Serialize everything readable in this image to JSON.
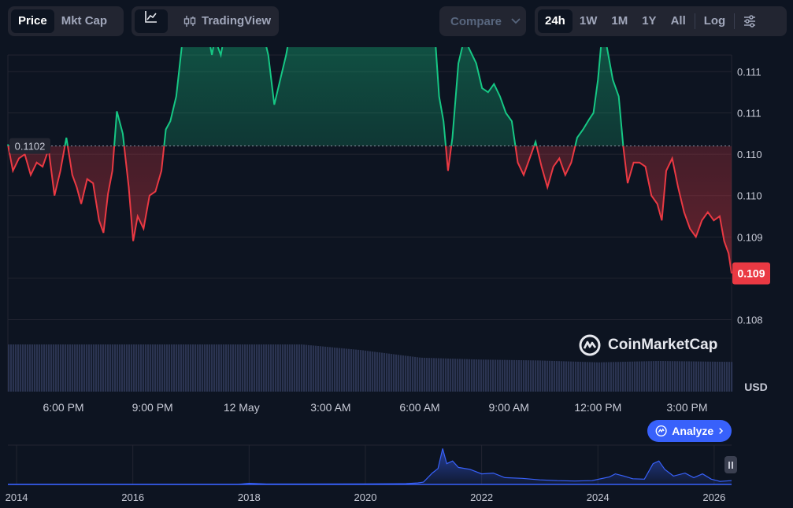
{
  "toolbar": {
    "type_buttons": [
      {
        "label": "Price",
        "active": true
      },
      {
        "label": "Mkt Cap",
        "active": false
      }
    ],
    "line_icon": "line-chart-icon",
    "tradingview_label": "TradingView",
    "tradingview_icon": "candlestick-icon",
    "compare_label": "Compare",
    "ranges": [
      {
        "label": "24h",
        "active": true
      },
      {
        "label": "1W",
        "active": false
      },
      {
        "label": "1M",
        "active": false
      },
      {
        "label": "1Y",
        "active": false
      },
      {
        "label": "All",
        "active": false
      }
    ],
    "log_label": "Log",
    "settings_icon": "sliders-icon"
  },
  "watermark": "CoinMarketCap",
  "analyze_label": "Analyze",
  "colors": {
    "up": "#16c784",
    "down": "#ea3943",
    "accent": "#3861fb",
    "volume": "#2b3451"
  },
  "chart_data": {
    "type": "line",
    "title": "",
    "xlabel": "",
    "ylabel": "",
    "currency_label": "USD",
    "baseline_value": 0.1102,
    "baseline_label": "0.1102",
    "current_value": 0.10866,
    "current_label": "0.109",
    "ylim": [
      0.1078,
      0.1113
    ],
    "y_ticks": [
      {
        "value": 0.1111,
        "label": "0.111"
      },
      {
        "value": 0.1106,
        "label": "0.111"
      },
      {
        "value": 0.1101,
        "label": "0.110"
      },
      {
        "value": 0.1096,
        "label": "0.110"
      },
      {
        "value": 0.1091,
        "label": "0.109"
      },
      {
        "value": 0.1086,
        "label": "0.109"
      },
      {
        "value": 0.1081,
        "label": "0.108"
      }
    ],
    "x_range": [
      16.13,
      40.5
    ],
    "x_ticks": [
      {
        "value": 18,
        "label": "6:00 PM"
      },
      {
        "value": 21,
        "label": "9:00 PM"
      },
      {
        "value": 24,
        "label": "12 May"
      },
      {
        "value": 27,
        "label": "3:00 AM"
      },
      {
        "value": 30,
        "label": "6:00 AM"
      },
      {
        "value": 33,
        "label": "9:00 AM"
      },
      {
        "value": 36,
        "label": "12:00 PM"
      },
      {
        "value": 39,
        "label": "3:00 PM"
      }
    ],
    "price_points": [
      [
        16.13,
        0.11022
      ],
      [
        16.3,
        0.1099
      ],
      [
        16.5,
        0.11005
      ],
      [
        16.7,
        0.1101
      ],
      [
        16.9,
        0.10985
      ],
      [
        17.1,
        0.11
      ],
      [
        17.3,
        0.10995
      ],
      [
        17.5,
        0.11016
      ],
      [
        17.7,
        0.1096
      ],
      [
        17.9,
        0.1099
      ],
      [
        18.1,
        0.1103
      ],
      [
        18.3,
        0.10985
      ],
      [
        18.45,
        0.1097
      ],
      [
        18.6,
        0.1095
      ],
      [
        18.8,
        0.1098
      ],
      [
        19.0,
        0.10975
      ],
      [
        19.2,
        0.1093
      ],
      [
        19.35,
        0.10915
      ],
      [
        19.5,
        0.10962
      ],
      [
        19.65,
        0.1099
      ],
      [
        19.8,
        0.11062
      ],
      [
        20.0,
        0.11035
      ],
      [
        20.2,
        0.1097
      ],
      [
        20.35,
        0.10905
      ],
      [
        20.5,
        0.10935
      ],
      [
        20.7,
        0.1092
      ],
      [
        20.9,
        0.1096
      ],
      [
        21.1,
        0.10965
      ],
      [
        21.3,
        0.1099
      ],
      [
        21.45,
        0.1104
      ],
      [
        21.6,
        0.1105
      ],
      [
        21.8,
        0.1108
      ],
      [
        22.0,
        0.11145
      ],
      [
        22.1,
        0.11185
      ],
      [
        22.25,
        0.11165
      ],
      [
        22.4,
        0.1118
      ],
      [
        22.55,
        0.1117
      ],
      [
        22.7,
        0.1118
      ],
      [
        22.85,
        0.1116
      ],
      [
        23.0,
        0.1113
      ],
      [
        23.1,
        0.1115
      ],
      [
        23.3,
        0.1113
      ],
      [
        23.5,
        0.1117
      ],
      [
        23.7,
        0.1121
      ],
      [
        23.9,
        0.1123
      ],
      [
        24.1,
        0.112
      ],
      [
        24.25,
        0.1116
      ],
      [
        24.4,
        0.1115
      ],
      [
        24.55,
        0.1118
      ],
      [
        24.7,
        0.1116
      ],
      [
        24.9,
        0.1113
      ],
      [
        25.1,
        0.1107
      ],
      [
        25.3,
        0.111
      ],
      [
        25.5,
        0.1113
      ],
      [
        25.7,
        0.1117
      ],
      [
        25.85,
        0.1121
      ],
      [
        26.0,
        0.1124
      ],
      [
        26.2,
        0.11225
      ],
      [
        26.4,
        0.1124
      ],
      [
        26.6,
        0.11228
      ],
      [
        26.8,
        0.11232
      ],
      [
        27.0,
        0.1122
      ],
      [
        27.2,
        0.11228
      ],
      [
        27.4,
        0.1122
      ],
      [
        27.6,
        0.112
      ],
      [
        27.8,
        0.1118
      ],
      [
        28.0,
        0.1116
      ],
      [
        28.2,
        0.112
      ],
      [
        28.45,
        0.11225
      ],
      [
        28.7,
        0.112
      ],
      [
        28.9,
        0.1117
      ],
      [
        29.1,
        0.11185
      ],
      [
        29.3,
        0.112
      ],
      [
        29.5,
        0.1121
      ],
      [
        29.7,
        0.11215
      ],
      [
        29.9,
        0.1119
      ],
      [
        30.1,
        0.1122
      ],
      [
        30.3,
        0.11215
      ],
      [
        30.5,
        0.1116
      ],
      [
        30.65,
        0.1108
      ],
      [
        30.8,
        0.1105
      ],
      [
        30.95,
        0.1099
      ],
      [
        31.1,
        0.1103
      ],
      [
        31.3,
        0.1112
      ],
      [
        31.5,
        0.1115
      ],
      [
        31.7,
        0.11135
      ],
      [
        31.9,
        0.1112
      ],
      [
        32.1,
        0.1109
      ],
      [
        32.3,
        0.11085
      ],
      [
        32.5,
        0.11095
      ],
      [
        32.7,
        0.1108
      ],
      [
        32.9,
        0.1106
      ],
      [
        33.1,
        0.1105
      ],
      [
        33.3,
        0.11
      ],
      [
        33.5,
        0.10985
      ],
      [
        33.7,
        0.11005
      ],
      [
        33.9,
        0.11025
      ],
      [
        34.1,
        0.10995
      ],
      [
        34.3,
        0.1097
      ],
      [
        34.5,
        0.10995
      ],
      [
        34.7,
        0.11005
      ],
      [
        34.9,
        0.10985
      ],
      [
        35.1,
        0.11
      ],
      [
        35.3,
        0.1103
      ],
      [
        35.5,
        0.1104
      ],
      [
        35.7,
        0.11052
      ],
      [
        35.85,
        0.1106
      ],
      [
        36.0,
        0.111
      ],
      [
        36.15,
        0.1116
      ],
      [
        36.3,
        0.1114
      ],
      [
        36.5,
        0.111
      ],
      [
        36.7,
        0.1108
      ],
      [
        36.85,
        0.1102
      ],
      [
        37.0,
        0.10975
      ],
      [
        37.2,
        0.11
      ],
      [
        37.4,
        0.11
      ],
      [
        37.6,
        0.10995
      ],
      [
        37.8,
        0.1096
      ],
      [
        38.0,
        0.1095
      ],
      [
        38.15,
        0.1093
      ],
      [
        38.3,
        0.1099
      ],
      [
        38.5,
        0.11005
      ],
      [
        38.7,
        0.1097
      ],
      [
        38.9,
        0.1094
      ],
      [
        39.1,
        0.1092
      ],
      [
        39.3,
        0.1091
      ],
      [
        39.5,
        0.1093
      ],
      [
        39.7,
        0.1094
      ],
      [
        39.9,
        0.1093
      ],
      [
        40.1,
        0.10935
      ],
      [
        40.25,
        0.10905
      ],
      [
        40.4,
        0.1089
      ],
      [
        40.5,
        0.10866
      ]
    ],
    "volume_points": [
      [
        16.13,
        1.0
      ],
      [
        20.0,
        1.0
      ],
      [
        23.0,
        1.0
      ],
      [
        26.0,
        1.0
      ],
      [
        28.0,
        0.88
      ],
      [
        30.0,
        0.72
      ],
      [
        32.0,
        0.68
      ],
      [
        34.0,
        0.66
      ],
      [
        36.0,
        0.62
      ],
      [
        38.0,
        0.65
      ],
      [
        40.5,
        0.63
      ]
    ],
    "overview": {
      "x_range": [
        2013.85,
        2026.3
      ],
      "y_max": 1.0,
      "x_ticks": [
        {
          "value": 2014,
          "label": "2014"
        },
        {
          "value": 2016,
          "label": "2016"
        },
        {
          "value": 2018,
          "label": "2018"
        },
        {
          "value": 2020,
          "label": "2020"
        },
        {
          "value": 2022,
          "label": "2022"
        },
        {
          "value": 2024,
          "label": "2024"
        },
        {
          "value": 2026,
          "label": "2026"
        }
      ],
      "points": [
        [
          2013.85,
          0.0
        ],
        [
          2017.8,
          0.0
        ],
        [
          2018.0,
          0.03
        ],
        [
          2018.3,
          0.01
        ],
        [
          2019.0,
          0.01
        ],
        [
          2020.0,
          0.015
        ],
        [
          2020.7,
          0.02
        ],
        [
          2020.9,
          0.04
        ],
        [
          2021.0,
          0.06
        ],
        [
          2021.15,
          0.3
        ],
        [
          2021.25,
          0.42
        ],
        [
          2021.33,
          0.95
        ],
        [
          2021.4,
          0.55
        ],
        [
          2021.5,
          0.62
        ],
        [
          2021.6,
          0.45
        ],
        [
          2021.8,
          0.4
        ],
        [
          2022.0,
          0.28
        ],
        [
          2022.2,
          0.3
        ],
        [
          2022.4,
          0.18
        ],
        [
          2022.7,
          0.16
        ],
        [
          2023.0,
          0.12
        ],
        [
          2023.3,
          0.1
        ],
        [
          2023.6,
          0.09
        ],
        [
          2023.9,
          0.1
        ],
        [
          2024.2,
          0.2
        ],
        [
          2024.3,
          0.28
        ],
        [
          2024.45,
          0.22
        ],
        [
          2024.6,
          0.15
        ],
        [
          2024.8,
          0.14
        ],
        [
          2024.95,
          0.55
        ],
        [
          2025.05,
          0.62
        ],
        [
          2025.15,
          0.4
        ],
        [
          2025.3,
          0.22
        ],
        [
          2025.5,
          0.3
        ],
        [
          2025.65,
          0.18
        ],
        [
          2025.8,
          0.28
        ],
        [
          2025.95,
          0.14
        ],
        [
          2026.1,
          0.08
        ],
        [
          2026.3,
          0.1
        ]
      ]
    }
  }
}
